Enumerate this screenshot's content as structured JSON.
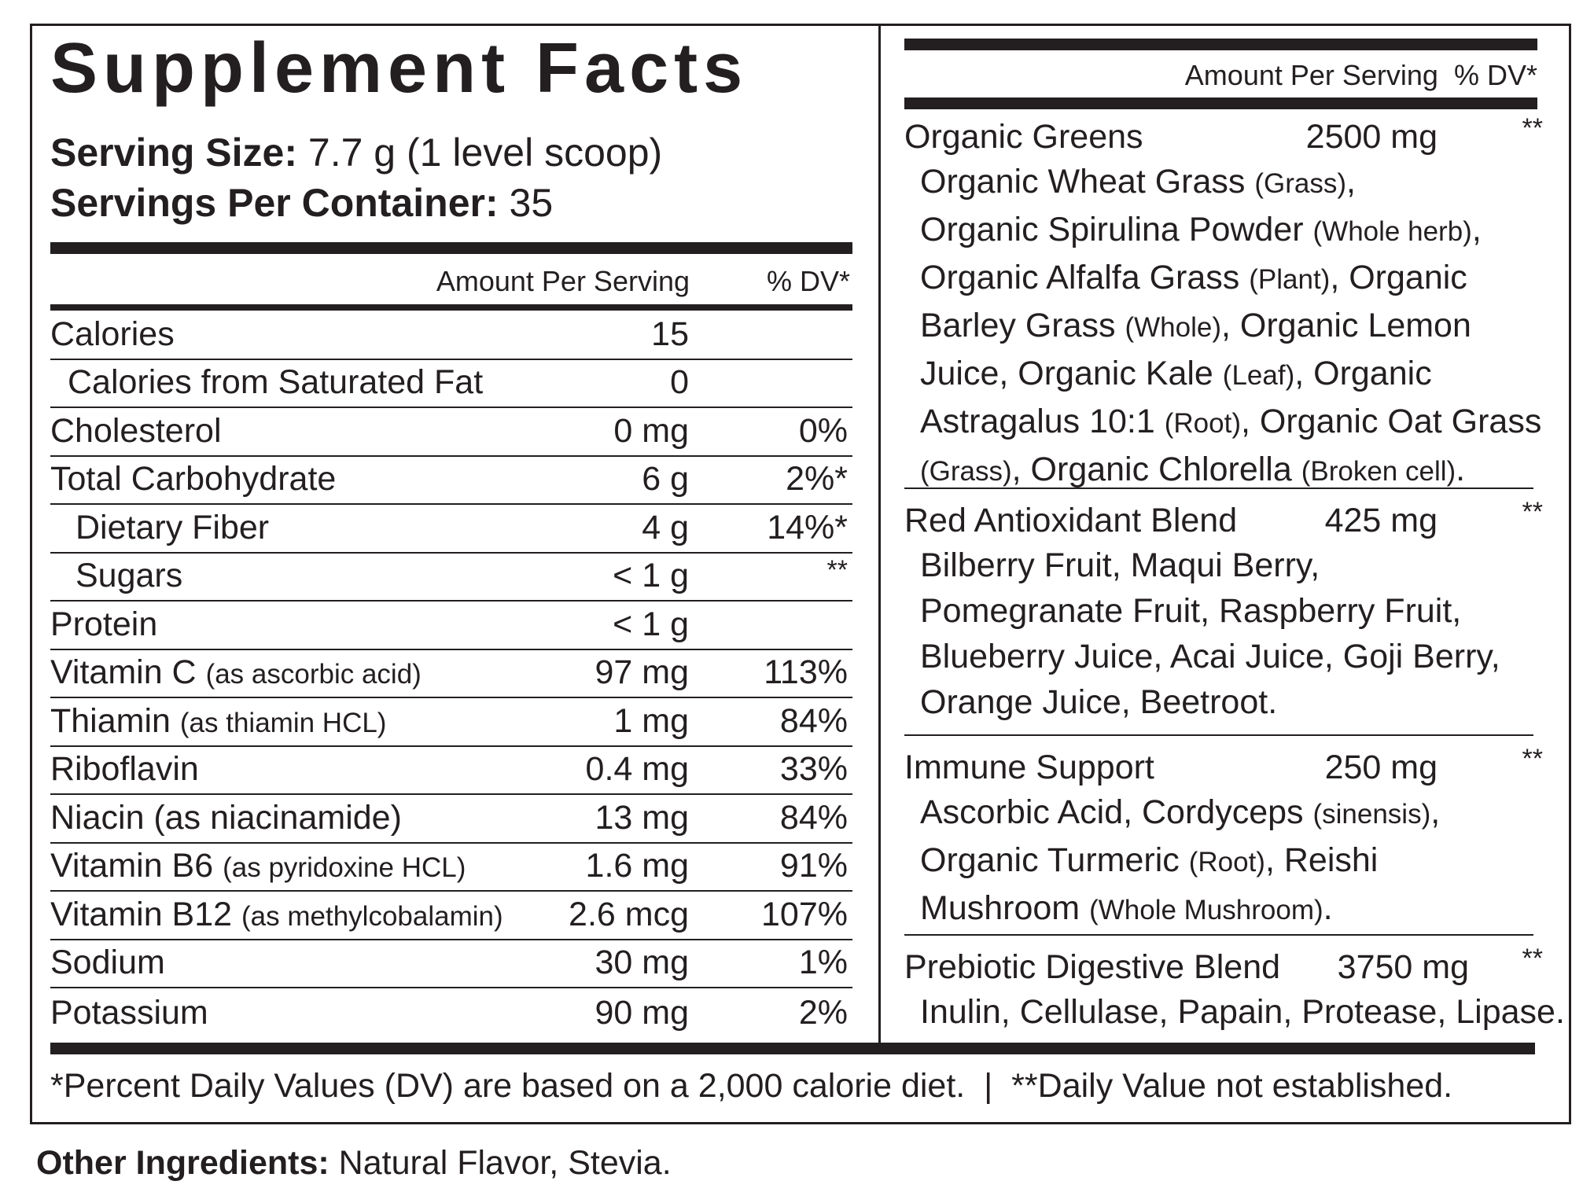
{
  "header": {
    "title": "Supplement Facts",
    "serving_size_label": "Serving Size:",
    "serving_size_value": "7.7 g (1 level scoop)",
    "servings_label": "Servings Per Container:",
    "servings_value": "35"
  },
  "left_table": {
    "col_amount": "Amount Per Serving",
    "col_dv": "% DV*",
    "rows": [
      {
        "name": "Calories",
        "sub": "",
        "amount": "15",
        "dv": ""
      },
      {
        "name": "Calories from Saturated Fat",
        "sub": "",
        "amount": "0",
        "dv": ""
      },
      {
        "name": "Cholesterol",
        "sub": "",
        "amount": "0 mg",
        "dv": "0%"
      },
      {
        "name": "Total Carbohydrate",
        "sub": "",
        "amount": "6 g",
        "dv": "2%*"
      },
      {
        "name": "Dietary Fiber",
        "sub": "",
        "amount": "4 g",
        "dv": "14%*"
      },
      {
        "name": "Sugars",
        "sub": "",
        "amount": "< 1 g",
        "dv": "**"
      },
      {
        "name": "Protein",
        "sub": "",
        "amount": "< 1 g",
        "dv": ""
      },
      {
        "name": "Vitamin C ",
        "sub": "(as ascorbic acid)",
        "amount": "97 mg",
        "dv": "113%"
      },
      {
        "name": "Thiamin ",
        "sub": "(as thiamin HCL)",
        "amount": "1 mg",
        "dv": "84%"
      },
      {
        "name": "Riboflavin",
        "sub": "",
        "amount": "0.4 mg",
        "dv": "33%"
      },
      {
        "name": "Niacin (as niacinamide)",
        "sub": "",
        "amount": "13 mg",
        "dv": "84%"
      },
      {
        "name": "Vitamin B6 ",
        "sub": "(as pyridoxine HCL)",
        "amount": "1.6 mg",
        "dv": "91%"
      },
      {
        "name": "Vitamin B12 ",
        "sub": "(as methylcobalamin)",
        "amount": "2.6 mcg",
        "dv": "107%"
      },
      {
        "name": "Sodium",
        "sub": "",
        "amount": "30 mg",
        "dv": "1%"
      },
      {
        "name": "Potassium",
        "sub": "",
        "amount": "90 mg",
        "dv": "2%"
      }
    ]
  },
  "right_table": {
    "col_header": "Amount Per Serving  % DV*",
    "blends": [
      {
        "name": "Organic Greens",
        "amount": "2500 mg",
        "dv": "**",
        "desc": [
          {
            "t": "Organic Wheat Grass ",
            "s": "(Grass)",
            "e": ","
          },
          {
            "t": "Organic Spirulina Powder ",
            "s": "(Whole herb)",
            "e": ","
          },
          {
            "t": "Organic Alfalfa Grass ",
            "s": "(Plant)",
            "e": ", Organic"
          },
          {
            "t": "Barley Grass ",
            "s": "(Whole)",
            "e": ", Organic Lemon"
          },
          {
            "t": "Juice, Organic Kale ",
            "s": "(Leaf)",
            "e": ", Organic"
          },
          {
            "t": "Astragalus 10:1 ",
            "s": "(Root)",
            "e": ", Organic Oat Grass"
          },
          {
            "t": "",
            "s": "(Grass)",
            "e": ", Organic Chlorella ",
            "s2": "(Broken cell)",
            "e2": "."
          }
        ]
      },
      {
        "name": "Red Antioxidant Blend",
        "amount": "425 mg",
        "dv": "**",
        "desc": [
          {
            "t": "Bilberry Fruit, Maqui Berry,",
            "s": "",
            "e": ""
          },
          {
            "t": "Pomegranate Fruit, Raspberry Fruit,",
            "s": "",
            "e": ""
          },
          {
            "t": "Blueberry Juice, Acai Juice, Goji Berry,",
            "s": "",
            "e": ""
          },
          {
            "t": "Orange Juice, Beetroot.",
            "s": "",
            "e": ""
          }
        ]
      },
      {
        "name": "Immune Support",
        "amount": "250 mg",
        "dv": "**",
        "desc": [
          {
            "t": "Ascorbic Acid, Cordyceps ",
            "s": "(sinensis)",
            "e": ","
          },
          {
            "t": "Organic Turmeric ",
            "s": "(Root)",
            "e": ", Reishi"
          },
          {
            "t": "Mushroom ",
            "s": "(Whole Mushroom)",
            "e": "."
          }
        ]
      },
      {
        "name": "Prebiotic Digestive Blend",
        "amount": "3750 mg",
        "dv": "**",
        "desc": [
          {
            "t": "Inulin, Cellulase, Papain, Protease, Lipase.",
            "s": "",
            "e": ""
          }
        ]
      }
    ]
  },
  "footnote": "*Percent Daily Values (DV) are based on a 2,000 calorie diet.  |  **Daily Value not established.",
  "other_ingredients": {
    "label": "Other Ingredients:",
    "value": " Natural Flavor, Stevia."
  }
}
